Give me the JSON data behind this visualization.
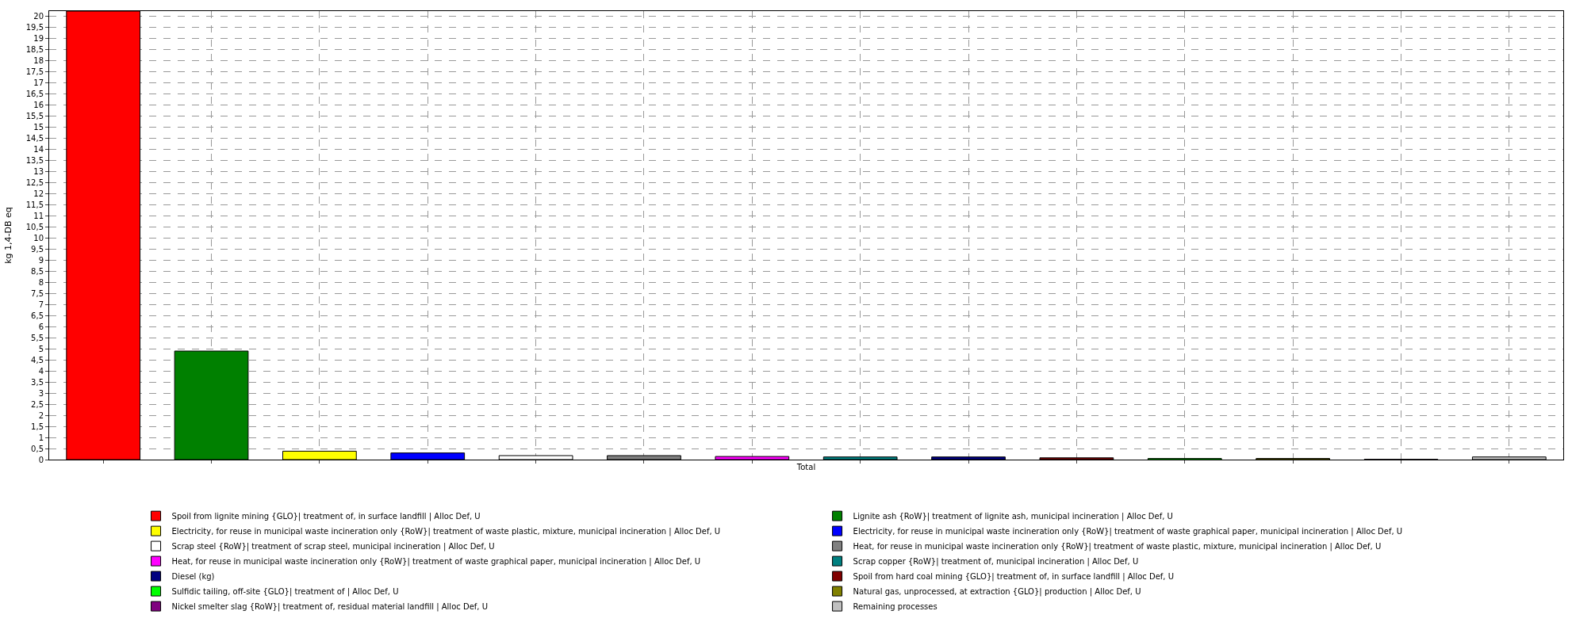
{
  "chart_data": {
    "type": "bar",
    "ylabel": "kg 1,4-DB eq",
    "categories": [
      "Total"
    ],
    "ylim": [
      0,
      20.25
    ],
    "yticks": [
      0,
      {
        "value": 0.5,
        "label": "0,5"
      },
      1,
      {
        "value": 1.5,
        "label": "1,5"
      },
      2,
      {
        "value": 2.5,
        "label": "2,5"
      },
      3,
      {
        "value": 3.5,
        "label": "3,5"
      },
      4,
      {
        "value": 4.5,
        "label": "4,5"
      },
      5,
      {
        "value": 5.5,
        "label": "5,5"
      },
      6,
      {
        "value": 6.5,
        "label": "6,5"
      },
      7,
      {
        "value": 7.5,
        "label": "7,5"
      },
      8,
      {
        "value": 8.5,
        "label": "8,5"
      },
      9,
      {
        "value": 9.5,
        "label": "9,5"
      },
      10,
      {
        "value": 10.5,
        "label": "10,5"
      },
      11,
      {
        "value": 11.5,
        "label": "11,5"
      },
      12,
      {
        "value": 12.5,
        "label": "12,5"
      },
      13,
      {
        "value": 13.5,
        "label": "13,5"
      },
      14,
      {
        "value": 14.5,
        "label": "14,5"
      },
      15,
      {
        "value": 15.5,
        "label": "15,5"
      },
      16,
      {
        "value": 16.5,
        "label": "16,5"
      },
      17,
      {
        "value": 17.5,
        "label": "17,5"
      },
      18,
      {
        "value": 18.5,
        "label": "18,5"
      },
      19,
      {
        "value": 19.5,
        "label": "19,5"
      },
      20
    ],
    "grid": true,
    "legend": "bottom",
    "series": [
      {
        "name": "Spoil from lignite mining {GLO}| treatment of, in surface landfill | Alloc Def, U",
        "color": "#ff0000",
        "values": [
          20.25
        ]
      },
      {
        "name": "Lignite ash {RoW}| treatment of lignite ash, municipal incineration | Alloc Def, U",
        "color": "#008000",
        "values": [
          4.9
        ]
      },
      {
        "name": "Electricity, for reuse in municipal waste incineration only {RoW}| treatment of waste plastic, mixture, municipal incineration | Alloc Def, U",
        "color": "#ffff00",
        "values": [
          0.38
        ]
      },
      {
        "name": "Electricity, for reuse in municipal waste incineration only {RoW}| treatment of waste graphical paper, municipal incineration | Alloc Def, U",
        "color": "#0000ff",
        "values": [
          0.3
        ]
      },
      {
        "name": "Scrap steel {RoW}| treatment of scrap steel, municipal incineration | Alloc Def, U",
        "color": "#ffffff",
        "values": [
          0.18
        ]
      },
      {
        "name": "Heat, for reuse in municipal waste incineration only {RoW}| treatment of waste plastic, mixture, municipal incineration | Alloc Def, U",
        "color": "#808080",
        "values": [
          0.18
        ]
      },
      {
        "name": "Heat, for reuse in municipal waste incineration only {RoW}| treatment of waste graphical paper, municipal incineration | Alloc Def, U",
        "color": "#ff00ff",
        "values": [
          0.14
        ]
      },
      {
        "name": "Scrap copper {RoW}| treatment of, municipal incineration | Alloc Def, U",
        "color": "#008080",
        "values": [
          0.12
        ]
      },
      {
        "name": "Diesel (kg)",
        "color": "#000080",
        "values": [
          0.12
        ]
      },
      {
        "name": "Spoil from hard coal mining {GLO}| treatment of, in surface landfill | Alloc Def, U",
        "color": "#800000",
        "values": [
          0.08
        ]
      },
      {
        "name": "Sulfidic tailing, off-site {GLO}| treatment of | Alloc Def, U",
        "color": "#00ff00",
        "values": [
          0.05
        ]
      },
      {
        "name": "Natural gas, unprocessed, at extraction {GLO}| production | Alloc Def, U",
        "color": "#808000",
        "values": [
          0.05
        ]
      },
      {
        "name": "Nickel smelter slag {RoW}| treatment of, residual material landfill | Alloc Def, U",
        "color": "#800080",
        "values": [
          0.01
        ]
      },
      {
        "name": "Remaining processes",
        "color": "#c0c0c0",
        "values": [
          0.12
        ]
      }
    ]
  }
}
